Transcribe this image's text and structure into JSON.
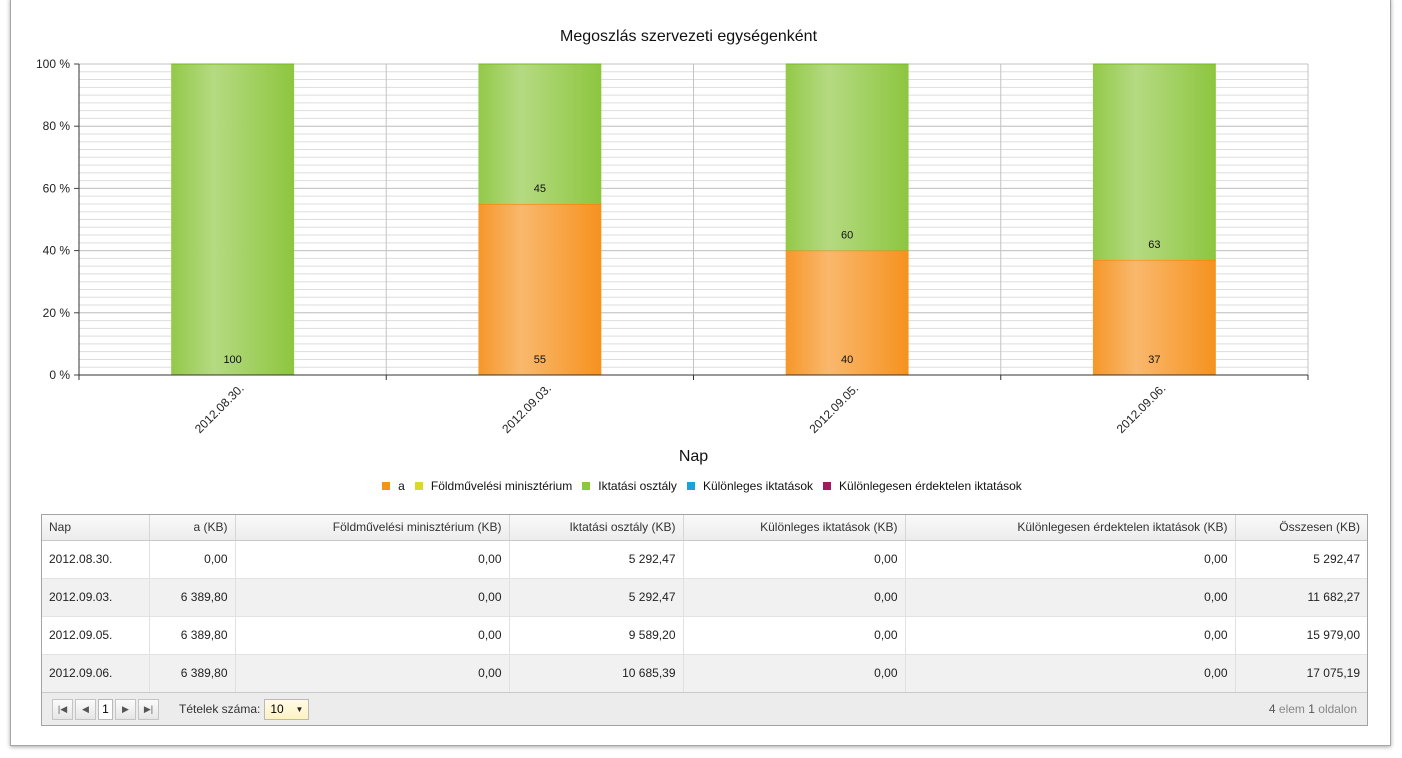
{
  "chart_data": {
    "type": "bar",
    "stacked": true,
    "normalized": true,
    "title": "Megoszlás szervezeti egységenként",
    "xlabel": "Nap",
    "ylabel": "",
    "ylim": [
      0,
      100
    ],
    "yticks": [
      "0 %",
      "20 %",
      "40 %",
      "60 %",
      "80 %",
      "100 %"
    ],
    "categories": [
      "2012.08.30.",
      "2012.09.03.",
      "2012.09.05.",
      "2012.09.06."
    ],
    "series": [
      {
        "name": "a",
        "color": "#f6921e",
        "values": [
          0,
          55,
          40,
          37
        ]
      },
      {
        "name": "Földművelési minisztérium",
        "color": "#d9d92a",
        "values": [
          0,
          0,
          0,
          0
        ]
      },
      {
        "name": "Iktatási osztály",
        "color": "#8dc63f",
        "values": [
          100,
          45,
          60,
          63
        ]
      },
      {
        "name": "Különleges iktatások",
        "color": "#1ba1e2",
        "values": [
          0,
          0,
          0,
          0
        ]
      },
      {
        "name": "Különlegesen érdektelen iktatások",
        "color": "#a3195b",
        "values": [
          0,
          0,
          0,
          0
        ]
      }
    ],
    "grid": true,
    "legend_position": "bottom"
  },
  "table": {
    "columns": [
      "Nap",
      "a (KB)",
      "Földművelési minisztérium (KB)",
      "Iktatási osztály (KB)",
      "Különleges iktatások (KB)",
      "Különlegesen érdektelen iktatások (KB)",
      "Összesen (KB)"
    ],
    "rows": [
      [
        "2012.08.30.",
        "0,00",
        "0,00",
        "5 292,47",
        "0,00",
        "0,00",
        "5 292,47"
      ],
      [
        "2012.09.03.",
        "6 389,80",
        "0,00",
        "5 292,47",
        "0,00",
        "0,00",
        "11 682,27"
      ],
      [
        "2012.09.05.",
        "6 389,80",
        "0,00",
        "9 589,20",
        "0,00",
        "0,00",
        "15 979,00"
      ],
      [
        "2012.09.06.",
        "6 389,80",
        "0,00",
        "10 685,39",
        "0,00",
        "0,00",
        "17 075,19"
      ]
    ]
  },
  "pager": {
    "current_page": "1",
    "page_size_label": "Tételek száma:",
    "page_size": "10",
    "info_count": "4",
    "info_items_word": "elem",
    "info_page": "1",
    "info_pages_word": "oldalon"
  },
  "icons": {
    "first": "first-page-icon",
    "prev": "prev-page-icon",
    "next": "next-page-icon",
    "last": "last-page-icon",
    "dropdown": "chevron-down-icon"
  }
}
